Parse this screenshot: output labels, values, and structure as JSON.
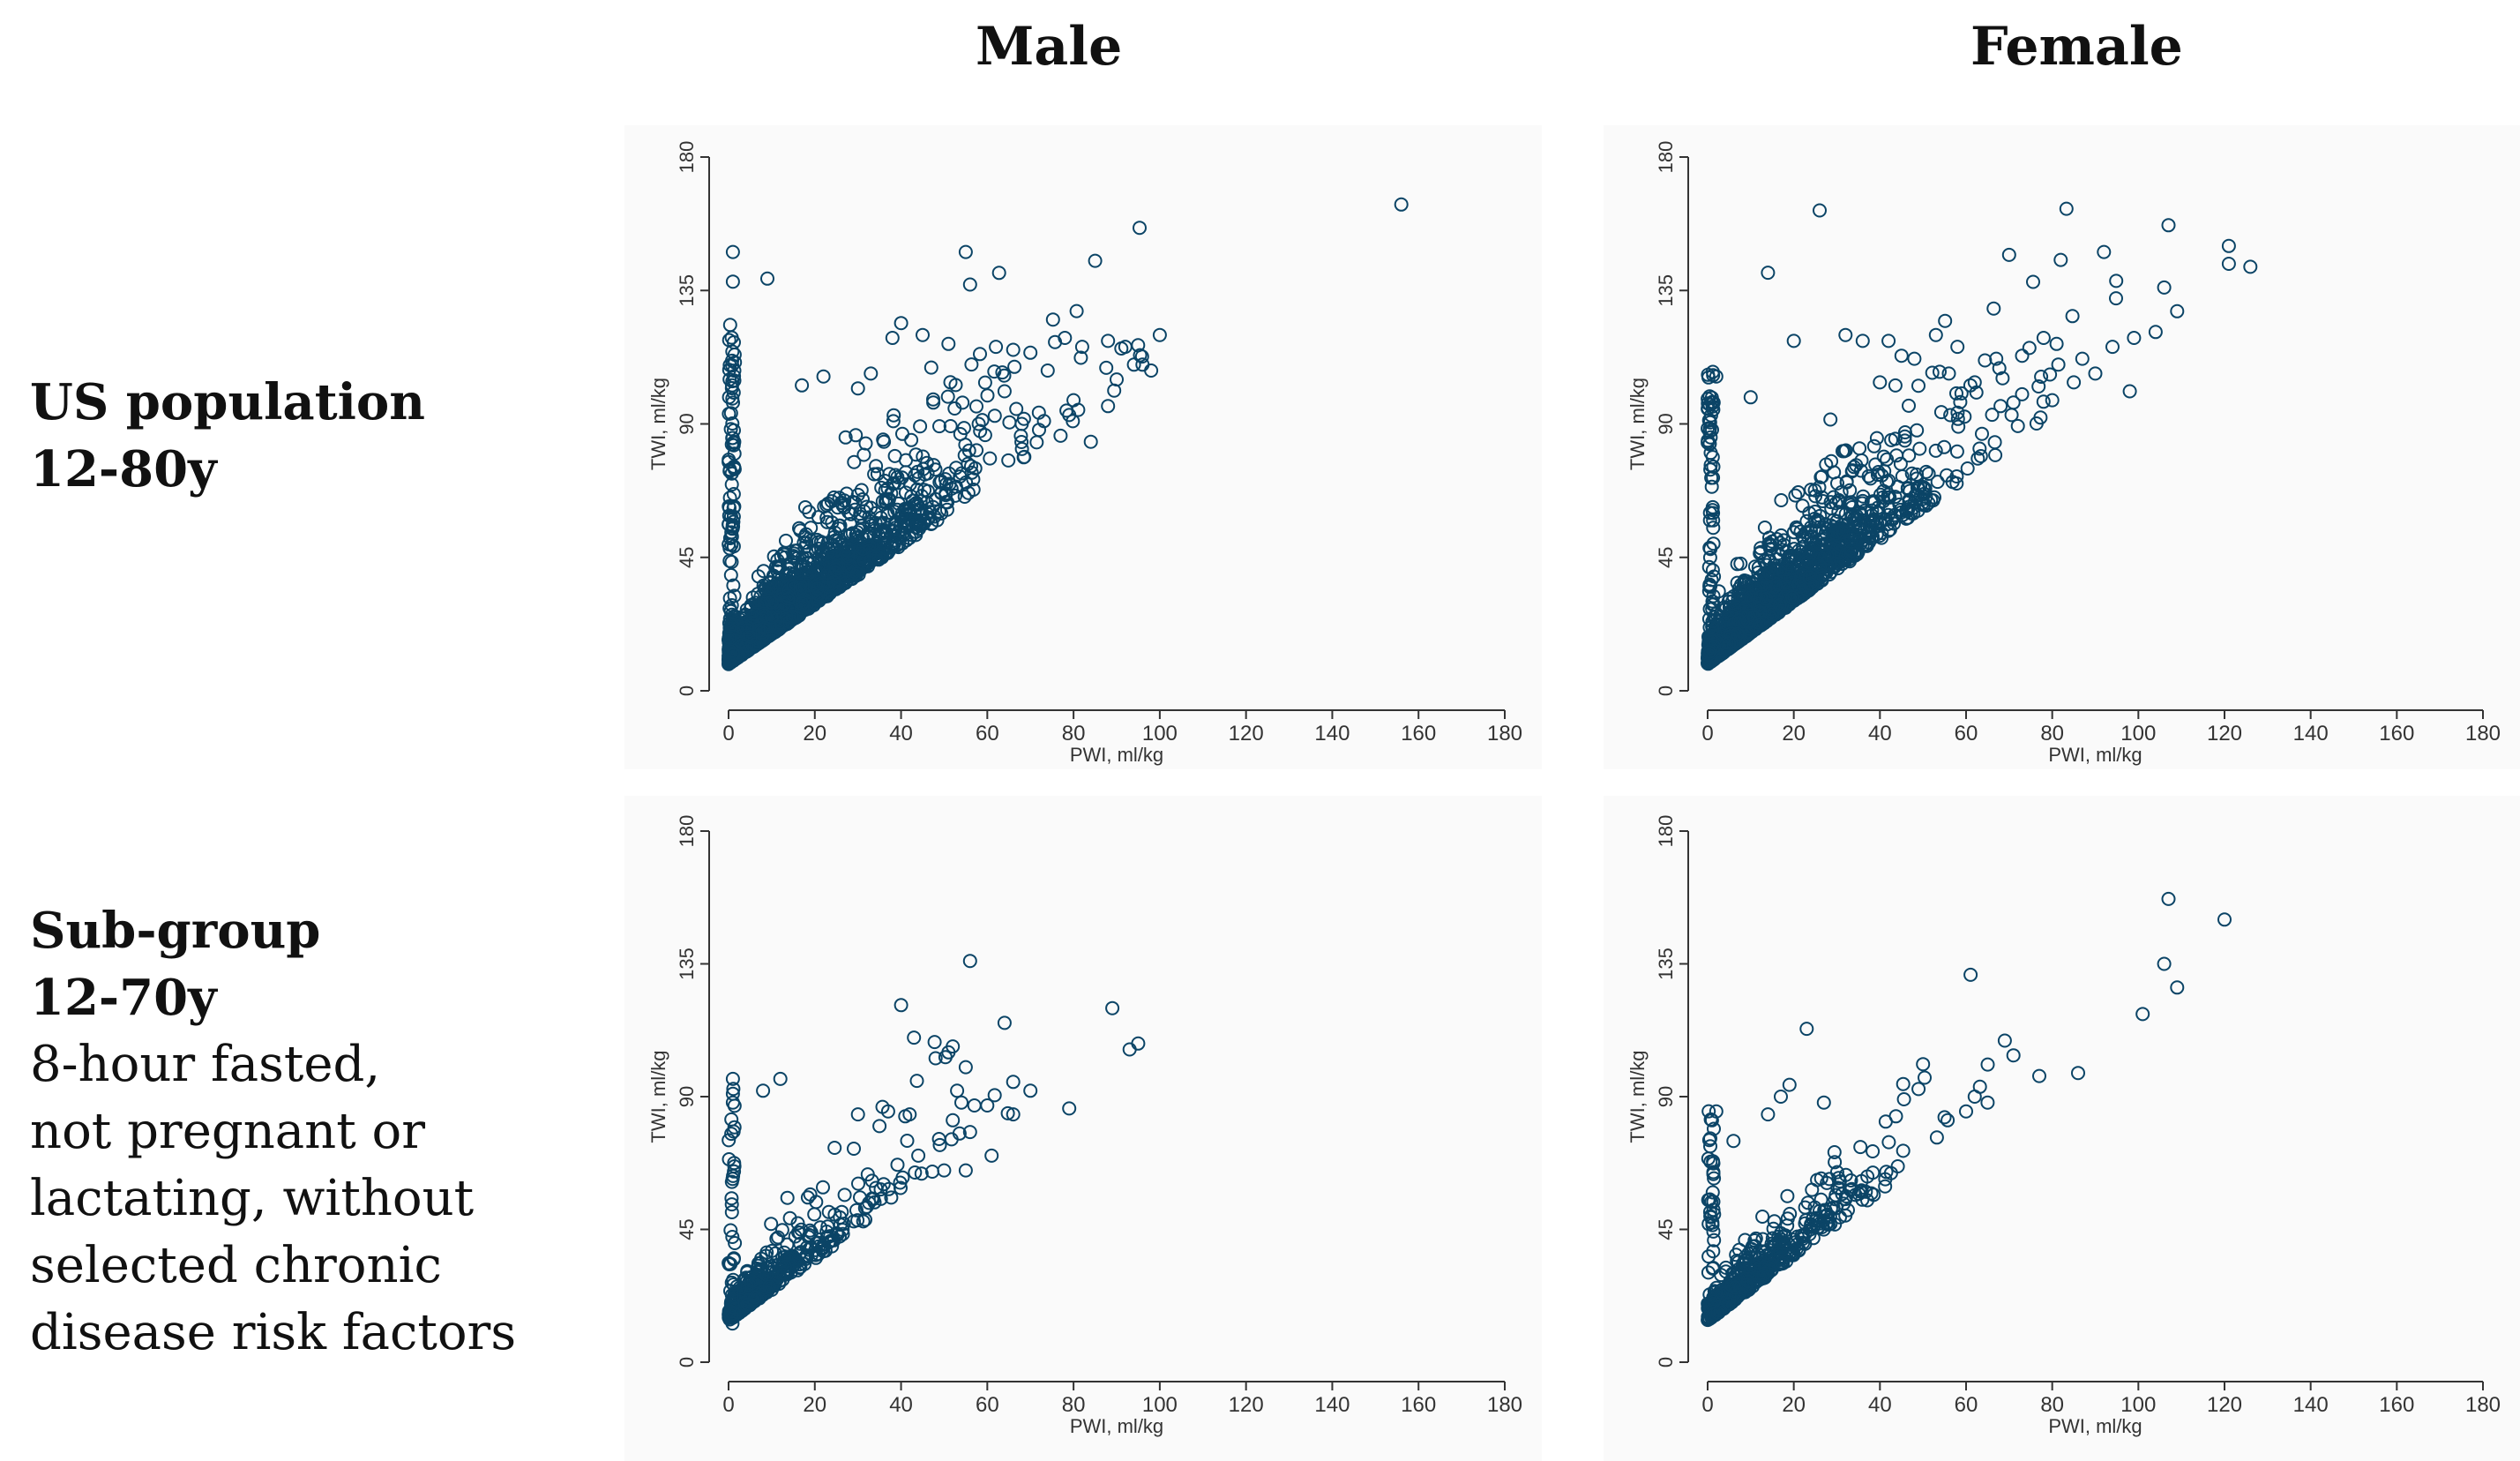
{
  "columns": {
    "male": "Male",
    "female": "Female"
  },
  "rows": {
    "us": {
      "line1": "US population",
      "line2": "12-80y"
    },
    "sub": {
      "line1": "Sub-group",
      "line2": "12-70y",
      "line3": "8-hour fasted,",
      "line4": "not pregnant or",
      "line5": "lactating, without",
      "line6": "selected chronic",
      "line7": "disease risk factors"
    }
  },
  "colors": {
    "marker": "#0b4466",
    "axis": "#333333",
    "panel_bg": "#fafafa"
  },
  "chart_data": [
    {
      "id": "us-male",
      "type": "scatter",
      "title": "US population 12-80y — Male",
      "xlabel": "PWI, ml/kg",
      "ylabel": "TWI, ml/kg",
      "xlim": [
        0,
        180
      ],
      "ylim": [
        0,
        180
      ],
      "xticks": [
        0,
        20,
        40,
        60,
        80,
        100,
        120,
        140,
        160,
        180
      ],
      "yticks": [
        0,
        45,
        90,
        135,
        180
      ],
      "cloud": {
        "count": 2600,
        "x_scale": 14,
        "x_max": 100,
        "base": 9,
        "slope": 1.0,
        "spread": 0.45,
        "seed": 11
      },
      "y_axis_cluster": {
        "count": 90,
        "y_min": 10,
        "y_max": 125
      },
      "points": [
        [
          156,
          164
        ],
        [
          1,
          148
        ],
        [
          1,
          138
        ],
        [
          9,
          139
        ],
        [
          55,
          148
        ],
        [
          56,
          137
        ],
        [
          85,
          145
        ],
        [
          40,
          124
        ],
        [
          38,
          119
        ],
        [
          45,
          120
        ],
        [
          51,
          117
        ],
        [
          62,
          116
        ],
        [
          66,
          115
        ],
        [
          70,
          114
        ],
        [
          78,
          119
        ],
        [
          82,
          116
        ],
        [
          88,
          118
        ],
        [
          92,
          116
        ],
        [
          94,
          110
        ],
        [
          98,
          108
        ],
        [
          100,
          120
        ],
        [
          96,
          110
        ],
        [
          47,
          109
        ],
        [
          33,
          107
        ],
        [
          22,
          106
        ],
        [
          17,
          103
        ],
        [
          74,
          108
        ],
        [
          64,
          101
        ],
        [
          80,
          98
        ],
        [
          88,
          96
        ],
        [
          79,
          93
        ],
        [
          90,
          105
        ],
        [
          30,
          102
        ],
        [
          58,
          90
        ],
        [
          68,
          90
        ],
        [
          72,
          88
        ],
        [
          84,
          84
        ],
        [
          77,
          86
        ]
      ]
    },
    {
      "id": "us-female",
      "type": "scatter",
      "title": "US population 12-80y — Female",
      "xlabel": "PWI, ml/kg",
      "ylabel": "TWI, ml/kg",
      "xlim": [
        0,
        180
      ],
      "ylim": [
        0,
        180
      ],
      "xticks": [
        0,
        20,
        40,
        60,
        80,
        100,
        120,
        140,
        160,
        180
      ],
      "yticks": [
        0,
        45,
        90,
        135,
        180
      ],
      "cloud": {
        "count": 2500,
        "x_scale": 14,
        "x_max": 100,
        "base": 9,
        "slope": 1.05,
        "spread": 0.45,
        "seed": 23
      },
      "y_axis_cluster": {
        "count": 80,
        "y_min": 10,
        "y_max": 110
      },
      "points": [
        [
          26,
          162
        ],
        [
          107,
          157
        ],
        [
          121,
          150
        ],
        [
          121,
          144
        ],
        [
          126,
          143
        ],
        [
          92,
          148
        ],
        [
          70,
          147
        ],
        [
          14,
          141
        ],
        [
          109,
          128
        ],
        [
          106,
          136
        ],
        [
          99,
          119
        ],
        [
          104,
          121
        ],
        [
          94,
          116
        ],
        [
          81,
          117
        ],
        [
          78,
          119
        ],
        [
          73,
          113
        ],
        [
          58,
          116
        ],
        [
          53,
          120
        ],
        [
          42,
          118
        ],
        [
          32,
          120
        ],
        [
          36,
          118
        ],
        [
          20,
          118
        ],
        [
          2,
          106
        ],
        [
          67,
          112
        ],
        [
          61,
          103
        ],
        [
          45,
          113
        ],
        [
          48,
          112
        ],
        [
          56,
          107
        ],
        [
          87,
          112
        ],
        [
          90,
          107
        ],
        [
          73,
          100
        ],
        [
          80,
          98
        ],
        [
          68,
          96
        ],
        [
          62,
          104
        ],
        [
          40,
          104
        ],
        [
          10,
          99
        ],
        [
          85,
          104
        ],
        [
          98,
          101
        ]
      ]
    },
    {
      "id": "sub-male",
      "type": "scatter",
      "title": "Sub-group 12-70y — Male",
      "xlabel": "PWI, ml/kg",
      "ylabel": "TWI, ml/kg",
      "xlim": [
        0,
        180
      ],
      "ylim": [
        0,
        180
      ],
      "xticks": [
        0,
        20,
        40,
        60,
        80,
        100,
        120,
        140,
        160,
        180
      ],
      "yticks": [
        0,
        45,
        90,
        135,
        180
      ],
      "cloud": {
        "count": 440,
        "x_scale": 13,
        "x_max": 70,
        "base": 14,
        "slope": 1.05,
        "spread": 0.33,
        "seed": 37
      },
      "y_axis_cluster": {
        "count": 30,
        "y_min": 12,
        "y_max": 95
      },
      "points": [
        [
          56,
          136
        ],
        [
          89,
          120
        ],
        [
          40,
          121
        ],
        [
          64,
          115
        ],
        [
          43,
          110
        ],
        [
          52,
          107
        ],
        [
          51,
          105
        ],
        [
          48,
          103
        ],
        [
          95,
          108
        ],
        [
          93,
          106
        ],
        [
          55,
          100
        ],
        [
          66,
          95
        ],
        [
          53,
          92
        ],
        [
          54,
          88
        ],
        [
          57,
          87
        ],
        [
          70,
          92
        ],
        [
          60,
          87
        ],
        [
          79,
          86
        ],
        [
          66,
          84
        ],
        [
          52,
          82
        ],
        [
          56,
          78
        ],
        [
          61,
          70
        ],
        [
          50,
          65
        ],
        [
          55,
          65
        ],
        [
          44,
          70
        ],
        [
          42,
          84
        ],
        [
          35,
          80
        ],
        [
          37,
          85
        ],
        [
          30,
          84
        ],
        [
          12,
          96
        ],
        [
          8,
          92
        ],
        [
          1,
          96
        ],
        [
          1,
          91
        ],
        [
          1,
          88
        ]
      ]
    },
    {
      "id": "sub-female",
      "type": "scatter",
      "title": "Sub-group 12-70y — Female",
      "xlabel": "PWI, ml/kg",
      "ylabel": "TWI, ml/kg",
      "xlim": [
        0,
        180
      ],
      "ylim": [
        0,
        180
      ],
      "xticks": [
        0,
        20,
        40,
        60,
        80,
        100,
        120,
        140,
        160,
        180
      ],
      "yticks": [
        0,
        45,
        90,
        135,
        180
      ],
      "cloud": {
        "count": 520,
        "x_scale": 13,
        "x_max": 68,
        "base": 14,
        "slope": 1.1,
        "spread": 0.3,
        "seed": 51
      },
      "y_axis_cluster": {
        "count": 35,
        "y_min": 12,
        "y_max": 88
      },
      "points": [
        [
          107,
          157
        ],
        [
          120,
          150
        ],
        [
          106,
          135
        ],
        [
          109,
          127
        ],
        [
          101,
          118
        ],
        [
          23,
          113
        ],
        [
          69,
          109
        ],
        [
          71,
          104
        ],
        [
          50,
          101
        ],
        [
          77,
          97
        ],
        [
          86,
          98
        ],
        [
          65,
          88
        ],
        [
          60,
          85
        ],
        [
          62,
          90
        ],
        [
          55,
          83
        ],
        [
          27,
          88
        ],
        [
          19,
          94
        ],
        [
          17,
          90
        ],
        [
          14,
          84
        ],
        [
          6,
          75
        ],
        [
          2,
          85
        ],
        [
          1,
          82
        ]
      ]
    }
  ]
}
